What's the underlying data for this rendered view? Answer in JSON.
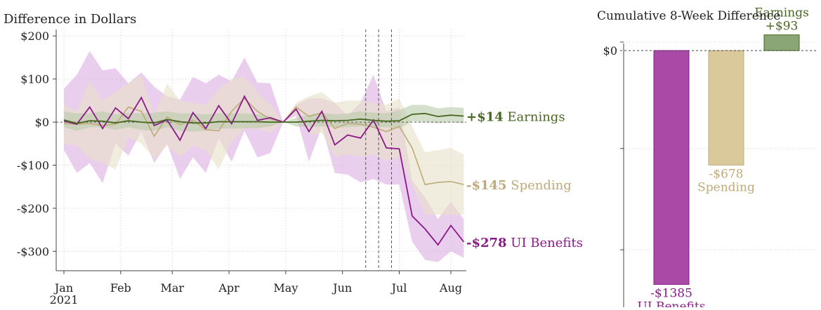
{
  "colors": {
    "ui": "#8b1a89",
    "ui_band": "#d8a6df",
    "ui_bar": "#a84aa6",
    "spending": "#bfaa79",
    "spending_band": "#e7e1c8",
    "spending_bar": "#d9c99b",
    "earnings": "#48671f",
    "earnings_band": "#b9ccaa",
    "earnings_bar": "#8aa676"
  },
  "chart_data": [
    {
      "type": "line",
      "title": "Difference in Dollars",
      "x_ticks": [
        "Jan",
        "Feb",
        "Mar",
        "Apr",
        "May",
        "Jun",
        "Jul",
        "Aug"
      ],
      "x_tick_weeks": [
        0,
        4.4,
        8.4,
        12.8,
        17.2,
        21.6,
        26,
        30
      ],
      "x_subtick": "2021",
      "y_ticks": [
        200,
        100,
        0,
        -100,
        -200,
        -300
      ],
      "y_tick_labels": [
        "$200",
        "$100",
        "$0",
        "-$100",
        "-$200",
        "-$300"
      ],
      "ylim": [
        -345,
        215
      ],
      "xlim": [
        -0.6,
        31.2
      ],
      "grid": true,
      "event_lines_weeks": [
        23.4,
        24.4,
        25.4
      ],
      "x_weeks": [
        0,
        1,
        2,
        3,
        4,
        5,
        6,
        7,
        8,
        9,
        10,
        11,
        12,
        13,
        14,
        15,
        16,
        17,
        18,
        19,
        20,
        21,
        22,
        23,
        24,
        25,
        26,
        27,
        28,
        29,
        30,
        31
      ],
      "series": [
        {
          "key": "ui",
          "values": [
            3,
            -5,
            35,
            -15,
            33,
            8,
            57,
            -8,
            5,
            -42,
            22,
            -15,
            38,
            -4,
            60,
            4,
            10,
            0,
            30,
            -22,
            25,
            -53,
            -30,
            -37,
            5,
            -60,
            -62,
            -218,
            -248,
            -285,
            -240,
            -278
          ],
          "band_upper": [
            78,
            110,
            165,
            120,
            125,
            90,
            115,
            82,
            60,
            52,
            105,
            90,
            110,
            95,
            150,
            92,
            90,
            0,
            40,
            55,
            55,
            45,
            15,
            45,
            110,
            25,
            35,
            -135,
            -175,
            -225,
            -185,
            -225
          ],
          "band_lower": [
            -65,
            -118,
            -95,
            -142,
            -50,
            -78,
            -22,
            -95,
            -50,
            -132,
            -82,
            -118,
            -38,
            -92,
            -20,
            -82,
            -72,
            0,
            15,
            -92,
            -10,
            -118,
            -122,
            -140,
            -132,
            -145,
            -145,
            -278,
            -320,
            -325,
            -300,
            -315
          ],
          "end_value": "-$278",
          "end_name": "UI Benefits"
        },
        {
          "key": "spending",
          "values": [
            -3,
            -5,
            -3,
            -8,
            -5,
            35,
            25,
            -33,
            12,
            -6,
            5,
            -18,
            -20,
            25,
            55,
            25,
            7,
            0,
            35,
            13,
            22,
            -15,
            -3,
            -5,
            -12,
            -22,
            -10,
            -60,
            -145,
            -140,
            -138,
            -145
          ],
          "band_upper": [
            40,
            25,
            95,
            50,
            70,
            90,
            110,
            15,
            90,
            50,
            45,
            40,
            75,
            100,
            105,
            70,
            40,
            0,
            45,
            60,
            70,
            45,
            50,
            50,
            45,
            40,
            55,
            -10,
            -70,
            -65,
            -60,
            -75
          ],
          "band_lower": [
            -50,
            -55,
            -85,
            -95,
            -110,
            -35,
            -50,
            -85,
            -55,
            -80,
            -55,
            -65,
            -110,
            -45,
            -15,
            -15,
            -25,
            0,
            20,
            -30,
            -25,
            -80,
            -75,
            -80,
            -75,
            -90,
            -80,
            -145,
            -215,
            -215,
            -215,
            -215
          ],
          "end_value": "-$145",
          "end_name": "Spending"
        },
        {
          "key": "earnings",
          "values": [
            5,
            -3,
            3,
            2,
            -2,
            3,
            0,
            -2,
            6,
            1,
            -2,
            -2,
            1,
            1,
            1,
            1,
            0,
            0,
            0,
            2,
            4,
            3,
            4,
            7,
            4,
            2,
            3,
            18,
            20,
            13,
            16,
            14
          ],
          "band_upper": [
            25,
            20,
            20,
            25,
            18,
            22,
            20,
            22,
            25,
            20,
            20,
            18,
            20,
            20,
            20,
            18,
            14,
            0,
            10,
            17,
            22,
            18,
            20,
            25,
            22,
            20,
            28,
            40,
            40,
            32,
            35,
            33
          ],
          "band_lower": [
            -12,
            -20,
            -12,
            -12,
            -18,
            -12,
            -18,
            -20,
            -12,
            -20,
            -22,
            -20,
            -15,
            -15,
            -15,
            -14,
            -10,
            0,
            -10,
            -12,
            -10,
            -12,
            -12,
            -10,
            -12,
            -12,
            -15,
            2,
            0,
            -3,
            0,
            -3
          ],
          "end_value": "+$14",
          "end_name": "Earnings"
        }
      ]
    },
    {
      "type": "bar",
      "title": "Cumulative 8-Week Difference",
      "y_ticks": [
        0
      ],
      "y_tick_labels": [
        "$0"
      ],
      "ylim": [
        -1520,
        125
      ],
      "grid": true,
      "bars": [
        {
          "key": "ui",
          "value": -1385,
          "value_label": "-$1385",
          "label": "UI Benefits"
        },
        {
          "key": "spending",
          "value": -678,
          "value_label": "-$678",
          "label": "Spending"
        },
        {
          "key": "earnings",
          "value": 93,
          "value_label": "+$93",
          "label": "Earnings"
        }
      ]
    }
  ]
}
